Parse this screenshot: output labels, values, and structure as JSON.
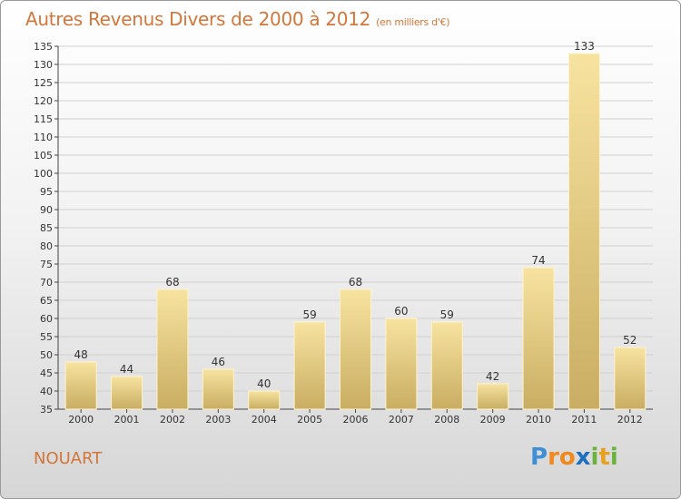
{
  "title": {
    "main": "Autres Revenus Divers de 2000 à 2012",
    "sub": "(en milliers d'€)"
  },
  "place": "NOUART",
  "logo": {
    "text": "Proxiti",
    "letters": [
      {
        "ch": "P",
        "color": "#3d8fd6"
      },
      {
        "ch": "r",
        "color": "#f08a1e"
      },
      {
        "ch": "o",
        "color": "#f08a1e"
      },
      {
        "ch": "x",
        "color": "#1f6fbf"
      },
      {
        "ch": "i",
        "color": "#6ab23c"
      },
      {
        "ch": "t",
        "color": "#e8a020"
      },
      {
        "ch": "i",
        "color": "#6ab23c"
      }
    ]
  },
  "colors": {
    "title": "#d2763a",
    "bar_light": "#f7e3a0",
    "bar_dark": "#c9ad62",
    "grid": "#d0d0d0"
  },
  "chart_data": {
    "type": "bar",
    "title": "Autres Revenus Divers de 2000 à 2012",
    "subtitle": "(en milliers d'€)",
    "categories": [
      "2000",
      "2001",
      "2002",
      "2003",
      "2004",
      "2005",
      "2006",
      "2007",
      "2008",
      "2009",
      "2010",
      "2011",
      "2012"
    ],
    "values": [
      48,
      44,
      68,
      46,
      40,
      59,
      68,
      60,
      59,
      42,
      74,
      133,
      52
    ],
    "ylim": [
      35,
      135
    ],
    "yticks": [
      35,
      40,
      45,
      50,
      55,
      60,
      65,
      70,
      75,
      80,
      85,
      90,
      95,
      100,
      105,
      110,
      115,
      120,
      125,
      130,
      135
    ],
    "grid": true,
    "data_labels": true
  }
}
